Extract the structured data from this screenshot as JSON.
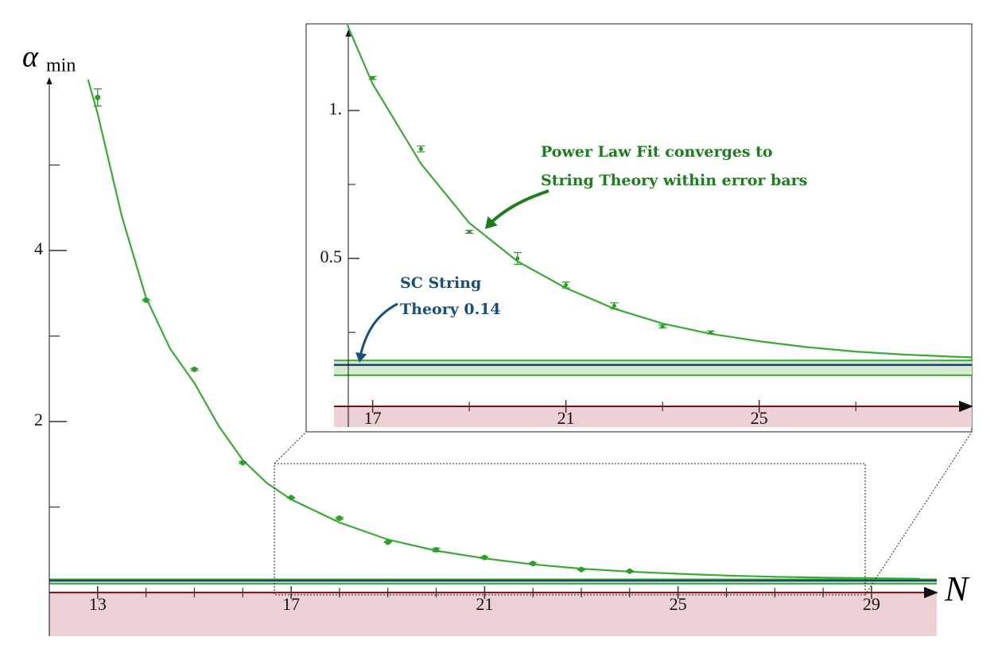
{
  "chart_data": {
    "type": "scatter",
    "x": [
      13,
      14,
      15,
      16,
      17,
      18,
      19,
      20,
      21,
      22,
      23,
      24
    ],
    "values": [
      5.79,
      3.42,
      2.61,
      1.52,
      1.11,
      0.87,
      0.59,
      0.5,
      0.41,
      0.34,
      0.27,
      0.25
    ],
    "errors": [
      0.1,
      0.01,
      0.01,
      0.01,
      0.005,
      0.01,
      0.005,
      0.02,
      0.01,
      0.01,
      0.005,
      0.005
    ],
    "color": "#2e9e2a",
    "fit": {
      "x": [
        12.8,
        13,
        13.5,
        14,
        14.5,
        15,
        15.5,
        16,
        16.5,
        17,
        18,
        19,
        20,
        21,
        22,
        23,
        24,
        25,
        26,
        27,
        28,
        29,
        30
      ],
      "values": [
        6.0,
        5.6,
        4.4,
        3.45,
        2.85,
        2.45,
        1.95,
        1.55,
        1.28,
        1.09,
        0.82,
        0.62,
        0.49,
        0.4,
        0.33,
        0.28,
        0.245,
        0.22,
        0.2,
        0.185,
        0.175,
        0.168,
        0.162
      ],
      "color": "#3aaa35"
    },
    "reference": {
      "value": 0.14,
      "band": [
        0.105,
        0.155
      ],
      "color": "#1a3f7a",
      "band_color": "#3aaa35"
    },
    "xlim": [
      12,
      30.35
    ],
    "ylim": [
      -0.51,
      6.0
    ],
    "xticks": [
      13,
      17,
      21,
      25,
      29
    ],
    "x_minor_ticks": [
      14,
      15,
      16,
      18,
      19,
      20,
      22,
      23,
      24,
      26,
      27,
      28
    ],
    "yticks": [
      2,
      4
    ],
    "y_minor_ticks": [
      1,
      3,
      5
    ],
    "xlabel": "N",
    "ylabel": {
      "symbol": "α",
      "subscript": "min"
    },
    "inset": {
      "xlim": [
        16.2,
        29.4
      ],
      "ylim": [
        -0.07,
        1.266
      ],
      "xticks": [
        17,
        21,
        25
      ],
      "x_minor_ticks": [
        19,
        23,
        27
      ],
      "yticks": [
        0.5,
        {
          "value": 1,
          "label": "1."
        }
      ],
      "y_minor_ticks": [
        0.25,
        0.75
      ]
    },
    "annotations": [
      {
        "lines": [
          "Power Law Fit converges to",
          "String Theory within error bars"
        ],
        "color": "#1e7d1e"
      },
      {
        "lines": [
          "SC String",
          "Theory 0.14"
        ],
        "color": "#1a4f7a"
      }
    ]
  }
}
